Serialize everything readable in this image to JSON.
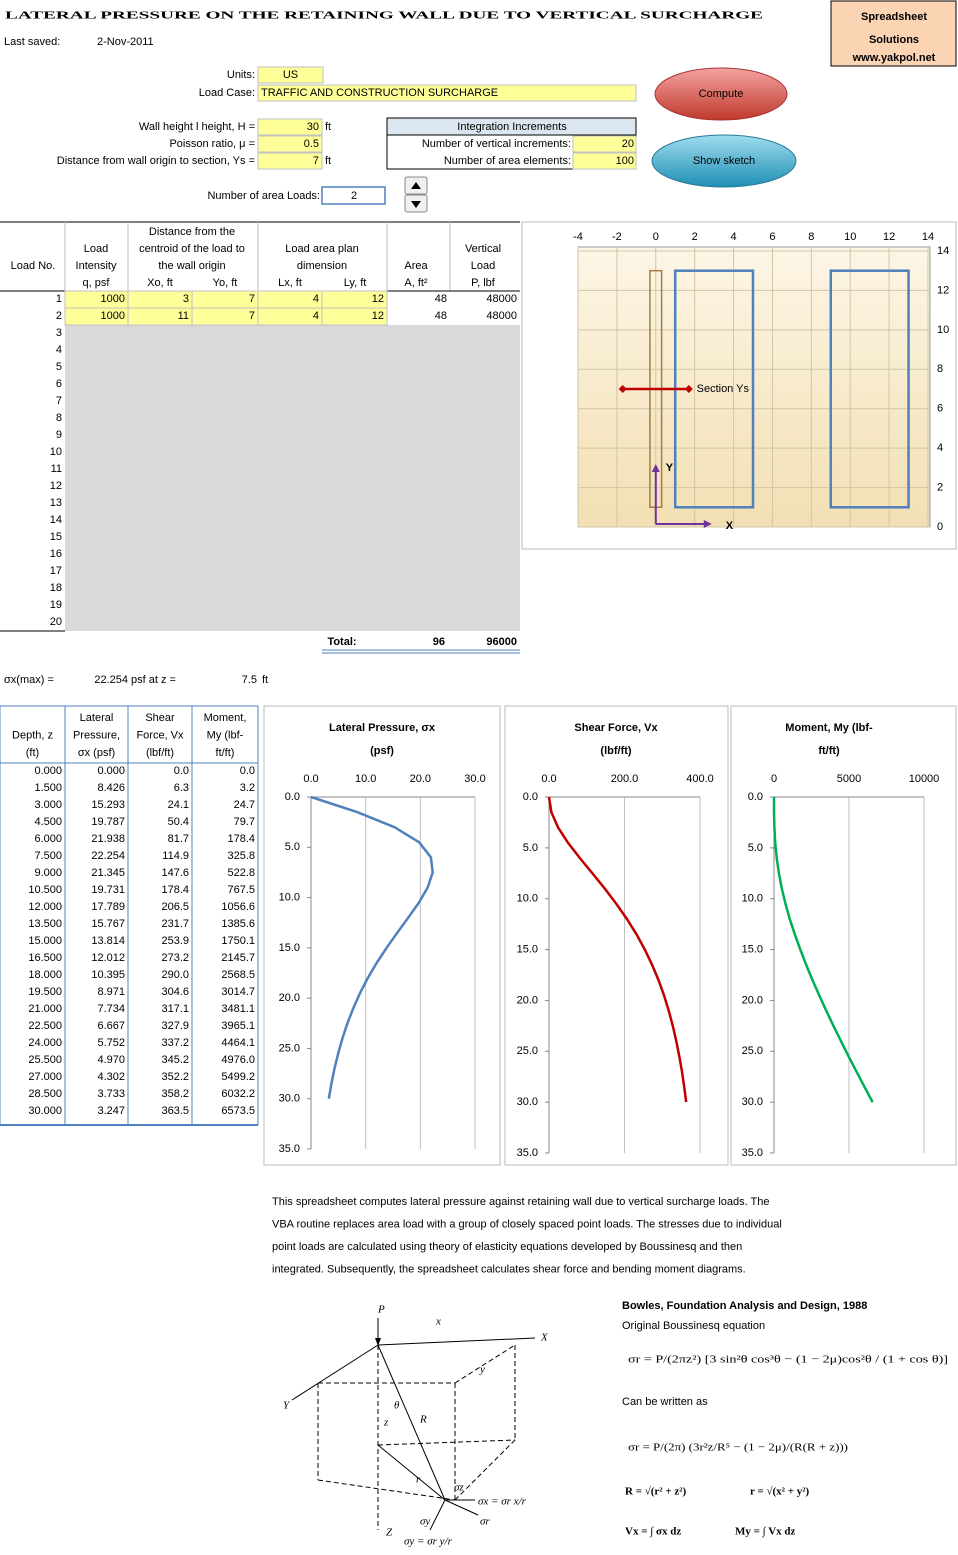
{
  "header": {
    "title": "LATERAL PRESSURE ON THE RETAINING WALL DUE TO VERTICAL SURCHARGE",
    "brand": [
      "Spreadsheet",
      "Solutions",
      "www.yakpol.net"
    ],
    "last_saved_label": "Last saved:",
    "last_saved": "2-Nov-2011"
  },
  "inputs": {
    "units": {
      "label": "Units:",
      "value": "US"
    },
    "load_case": {
      "label": "Load Case:",
      "value": "TRAFFIC AND CONSTRUCTION SURCHARGE"
    },
    "wall_height": {
      "label": "Wall height l height, H =",
      "value": 30,
      "unit": "ft"
    },
    "poisson": {
      "label": "Poisson ratio, μ =",
      "value": 0.5
    },
    "section": {
      "label": "Distance from wall origin to section, Ys =",
      "value": 7,
      "unit": "ft"
    },
    "num_loads": {
      "label": "Number of area Loads:",
      "value": 2
    }
  },
  "integration": {
    "title": "Integration Increments",
    "vertical": {
      "label": "Number of vertical increments:",
      "value": 20
    },
    "area": {
      "label": "Number of area elements:",
      "value": 100
    }
  },
  "buttons": {
    "compute": "Compute",
    "sketch": "Show sketch"
  },
  "loads_table": {
    "headers": [
      [
        "Load No."
      ],
      [
        "Load",
        "Intensity"
      ],
      [
        "Distance from the",
        "centroid of the load to",
        "the wall origin"
      ],
      [
        "Load area plan",
        "dimension"
      ],
      [
        "Area"
      ],
      [
        "Vertical",
        "Load"
      ]
    ],
    "subheaders": [
      "q, psf",
      "Xo, ft",
      "Yo, ft",
      "Lx, ft",
      "Ly, ft",
      "A, ft²",
      "P, lbf"
    ],
    "numbers": [
      1,
      2,
      3,
      4,
      5,
      6,
      7,
      8,
      9,
      10,
      11,
      12,
      13,
      14,
      15,
      16,
      17,
      18,
      19,
      20
    ],
    "rows": [
      [
        1000,
        3,
        7,
        4,
        12,
        48,
        48000
      ],
      [
        1000,
        11,
        7,
        4,
        12,
        48,
        48000
      ]
    ],
    "total_label": "Total:",
    "totals": [
      96,
      96000
    ]
  },
  "sketch": {
    "type": "plan",
    "xlim": [
      -4,
      14
    ],
    "xticks": [
      -4,
      -2,
      0,
      2,
      4,
      6,
      8,
      10,
      12,
      14
    ],
    "ylim": [
      0,
      14
    ],
    "yticks": [
      0,
      2,
      4,
      6,
      8,
      10,
      12,
      14
    ],
    "grid": true,
    "load_color": "#4f81bd",
    "section_color": "#c00000",
    "axis_color": "#7030a0",
    "section_label": "Section Ys",
    "x_label": "X",
    "y_label": "Y"
  },
  "max": {
    "label": "σx(max) =",
    "value": 22.254,
    "mid": "psf at z =",
    "z": 7.5,
    "unit": "ft"
  },
  "results": {
    "columns": [
      {
        "header": [
          "Depth, z",
          "(ft)"
        ],
        "values": [
          0,
          1.5,
          3,
          4.5,
          6,
          7.5,
          9,
          10.5,
          12,
          13.5,
          15,
          16.5,
          18,
          19.5,
          21,
          22.5,
          24,
          25.5,
          27,
          28.5,
          30
        ],
        "value_labels": [
          "0.000",
          "1.500",
          "3.000",
          "4.500",
          "6.000",
          "7.500",
          "9.000",
          "10.500",
          "12.000",
          "13.500",
          "15.000",
          "16.500",
          "18.000",
          "19.500",
          "21.000",
          "22.500",
          "24.000",
          "25.500",
          "27.000",
          "28.500",
          "30.000"
        ]
      },
      {
        "header": [
          "Lateral",
          "Pressure,",
          "σx (psf)"
        ],
        "values": [
          0,
          8.426,
          15.293,
          19.787,
          21.938,
          22.254,
          21.345,
          19.731,
          17.789,
          15.767,
          13.814,
          12.012,
          10.395,
          8.971,
          7.734,
          6.667,
          5.752,
          4.97,
          4.302,
          3.733,
          3.247
        ],
        "value_labels": [
          "0.000",
          "8.426",
          "15.293",
          "19.787",
          "21.938",
          "22.254",
          "21.345",
          "19.731",
          "17.789",
          "15.767",
          "13.814",
          "12.012",
          "10.395",
          "8.971",
          "7.734",
          "6.667",
          "5.752",
          "4.970",
          "4.302",
          "3.733",
          "3.247"
        ]
      },
      {
        "header": [
          "Shear",
          "Force, Vx",
          "(lbf/ft)"
        ],
        "values": [
          0,
          6.3,
          24.1,
          50.4,
          81.7,
          114.9,
          147.6,
          178.4,
          206.5,
          231.7,
          253.9,
          273.2,
          290,
          304.6,
          317.1,
          327.9,
          337.2,
          345.2,
          352.2,
          358.2,
          363.5
        ],
        "value_labels": [
          "0.0",
          "6.3",
          "24.1",
          "50.4",
          "81.7",
          "114.9",
          "147.6",
          "178.4",
          "206.5",
          "231.7",
          "253.9",
          "273.2",
          "290.0",
          "304.6",
          "317.1",
          "327.9",
          "337.2",
          "345.2",
          "352.2",
          "358.2",
          "363.5"
        ]
      },
      {
        "header": [
          "Moment,",
          "My (lbf-",
          "ft/ft)"
        ],
        "values": [
          0,
          3.2,
          24.7,
          79.7,
          178.4,
          325.8,
          522.8,
          767.5,
          1056.6,
          1385.6,
          1750.1,
          2145.7,
          2568.5,
          3014.7,
          3481.1,
          3965.1,
          4464.1,
          4976,
          5499.2,
          6032.2,
          6573.5
        ],
        "value_labels": [
          "0.0",
          "3.2",
          "24.7",
          "79.7",
          "178.4",
          "325.8",
          "522.8",
          "767.5",
          "1056.6",
          "1385.6",
          "1750.1",
          "2145.7",
          "2568.5",
          "3014.7",
          "3481.1",
          "3965.1",
          "4464.1",
          "4976.0",
          "5499.2",
          "6032.2",
          "6573.5"
        ]
      }
    ]
  },
  "charts": [
    {
      "type": "line",
      "title": [
        "Lateral Pressure, σx",
        "(psf)"
      ],
      "color": "#4f81bd",
      "xlim": [
        0,
        30
      ],
      "xticks": [
        {
          "value": 0,
          "label": "0.0"
        },
        {
          "value": 10,
          "label": "10.0"
        },
        {
          "value": 20,
          "label": "20.0"
        },
        {
          "value": 30,
          "label": "30.0"
        }
      ],
      "ylim": [
        0,
        35
      ],
      "yticks": [
        {
          "value": 0,
          "label": "0.0"
        },
        {
          "value": 5,
          "label": "5.0"
        },
        {
          "value": 10,
          "label": "10.0"
        },
        {
          "value": 15,
          "label": "15.0"
        },
        {
          "value": 20,
          "label": "20.0"
        },
        {
          "value": 25,
          "label": "25.0"
        },
        {
          "value": 30,
          "label": "30.0"
        },
        {
          "value": 35,
          "label": "35.0"
        }
      ],
      "grid": true
    },
    {
      "type": "line",
      "title": [
        "Shear Force,  Vx",
        "(lbf/ft)"
      ],
      "color": "#c00000",
      "xlim": [
        0,
        400
      ],
      "xticks": [
        {
          "value": 0,
          "label": "0.0"
        },
        {
          "value": 200,
          "label": "200.0"
        },
        {
          "value": 400,
          "label": "400.0"
        }
      ],
      "ylim": [
        0,
        35
      ],
      "yticks": [
        {
          "value": 0,
          "label": "0.0"
        },
        {
          "value": 5,
          "label": "5.0"
        },
        {
          "value": 10,
          "label": "10.0"
        },
        {
          "value": 15,
          "label": "15.0"
        },
        {
          "value": 20,
          "label": "20.0"
        },
        {
          "value": 25,
          "label": "25.0"
        },
        {
          "value": 30,
          "label": "30.0"
        },
        {
          "value": 35,
          "label": "35.0"
        }
      ],
      "grid": true
    },
    {
      "type": "line",
      "title": [
        "Moment, My (lbf-",
        "ft/ft)"
      ],
      "color": "#00b050",
      "xlim": [
        0,
        10000
      ],
      "xticks": [
        0,
        5000,
        10000
      ],
      "ylim": [
        0,
        35
      ],
      "yticks": [
        {
          "value": 0,
          "label": "0.0"
        },
        {
          "value": 5,
          "label": "5.0"
        },
        {
          "value": 10,
          "label": "10.0"
        },
        {
          "value": 15,
          "label": "15.0"
        },
        {
          "value": 20,
          "label": "20.0"
        },
        {
          "value": 25,
          "label": "25.0"
        },
        {
          "value": 30,
          "label": "30.0"
        },
        {
          "value": 35,
          "label": "35.0"
        }
      ],
      "grid": true
    }
  ],
  "description": [
    "This spreadsheet computes lateral pressure against retaining wall due to vertical surcharge loads. The",
    "VBA routine replaces area load with a group of closely spaced point loads. The stresses due to individual",
    "point loads are calculated using theory of elasticity equations developed by Boussinesq and then",
    "integrated. Subsequently, the spreadsheet calculates shear force and bending moment diagrams."
  ],
  "reference": {
    "source": "Bowles, Foundation Analysis and Design, 1988",
    "original": "Original Boussinesq equation",
    "eq_original": "σr = P/(2πz²) [3 sin²θ cos³θ − (1 − 2μ)cos²θ / (1 + cos θ)]",
    "rewritten": "Can be written as",
    "eq_rewritten": "σr = P/(2π) (3r²z/R⁵ − (1 − 2μ)/(R(R + z)))",
    "eq_R": "R = √(r² + z²)",
    "eq_r": "r = √(x² + y²)",
    "eq_V": "Vx = ∫ σx dz",
    "eq_M": "My = ∫ Vx dz"
  },
  "diagram": {
    "labels": [
      "P",
      "X",
      "Y",
      "Z",
      "x",
      "y",
      "z",
      "R",
      "r",
      "θ",
      "σz",
      "σr",
      "σx = σr x/r",
      "σy",
      "σy = σr y/r"
    ]
  }
}
